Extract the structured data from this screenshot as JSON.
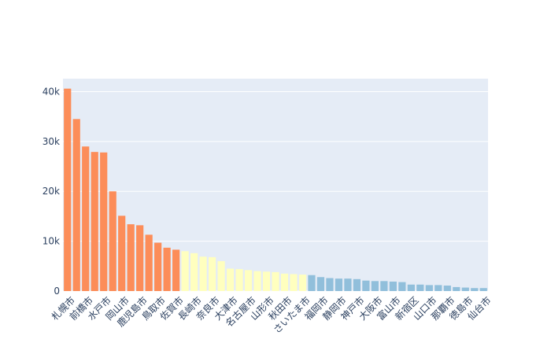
{
  "chart_data": {
    "type": "bar",
    "title": "",
    "xlabel": "",
    "ylabel": "",
    "ylim": [
      0,
      42600
    ],
    "yticks": [
      0,
      10000,
      20000,
      30000,
      40000
    ],
    "ytick_labels": [
      "0",
      "10k",
      "20k",
      "30k",
      "40k"
    ],
    "grid": true,
    "legend": "none",
    "shown_tick_indices": [
      0,
      2,
      4,
      6,
      8,
      10,
      12,
      14,
      16,
      18,
      20,
      22,
      24,
      26,
      28,
      30,
      32,
      34,
      36,
      38,
      40,
      42,
      44,
      46
    ],
    "categories": [
      "札幌市",
      "",
      "前橋市",
      "",
      "水戸市",
      "",
      "岡山市",
      "",
      "鹿児島市",
      "",
      "鳥取市",
      "",
      "佐賀市",
      "",
      "長崎市",
      "",
      "奈良市",
      "",
      "大津市",
      "",
      "名古屋市",
      "",
      "山形市",
      "",
      "秋田市",
      "",
      "さいたま市",
      "",
      "福岡市",
      "",
      "静岡市",
      "",
      "神戸市",
      "",
      "大阪市",
      "",
      "富山市",
      "",
      "新宿区",
      "",
      "山口市",
      "",
      "那覇市",
      "",
      "徳島市",
      "",
      "仙台市"
    ],
    "values": [
      40600,
      34500,
      29000,
      27900,
      27800,
      20000,
      15100,
      13400,
      13200,
      11300,
      9700,
      8700,
      8300,
      8000,
      7600,
      6900,
      6800,
      6000,
      4500,
      4400,
      4200,
      4000,
      3900,
      3800,
      3500,
      3400,
      3300,
      3200,
      2800,
      2600,
      2500,
      2500,
      2400,
      2100,
      2000,
      2000,
      1900,
      1800,
      1300,
      1300,
      1200,
      1200,
      1100,
      800,
      700,
      600,
      600
    ],
    "groups": [
      0,
      0,
      0,
      0,
      0,
      0,
      0,
      0,
      0,
      0,
      0,
      0,
      0,
      1,
      1,
      1,
      1,
      1,
      1,
      1,
      1,
      1,
      1,
      1,
      1,
      1,
      1,
      2,
      2,
      2,
      2,
      2,
      2,
      2,
      2,
      2,
      2,
      2,
      2,
      2,
      2,
      2,
      2,
      2,
      2,
      2,
      2
    ],
    "group_colors": [
      "#fc8d59",
      "#ffffbf",
      "#91bfdb"
    ],
    "background": "#e5ecf6",
    "gridline_color": "#ffffff",
    "tick_color": "#2a3f5f"
  }
}
